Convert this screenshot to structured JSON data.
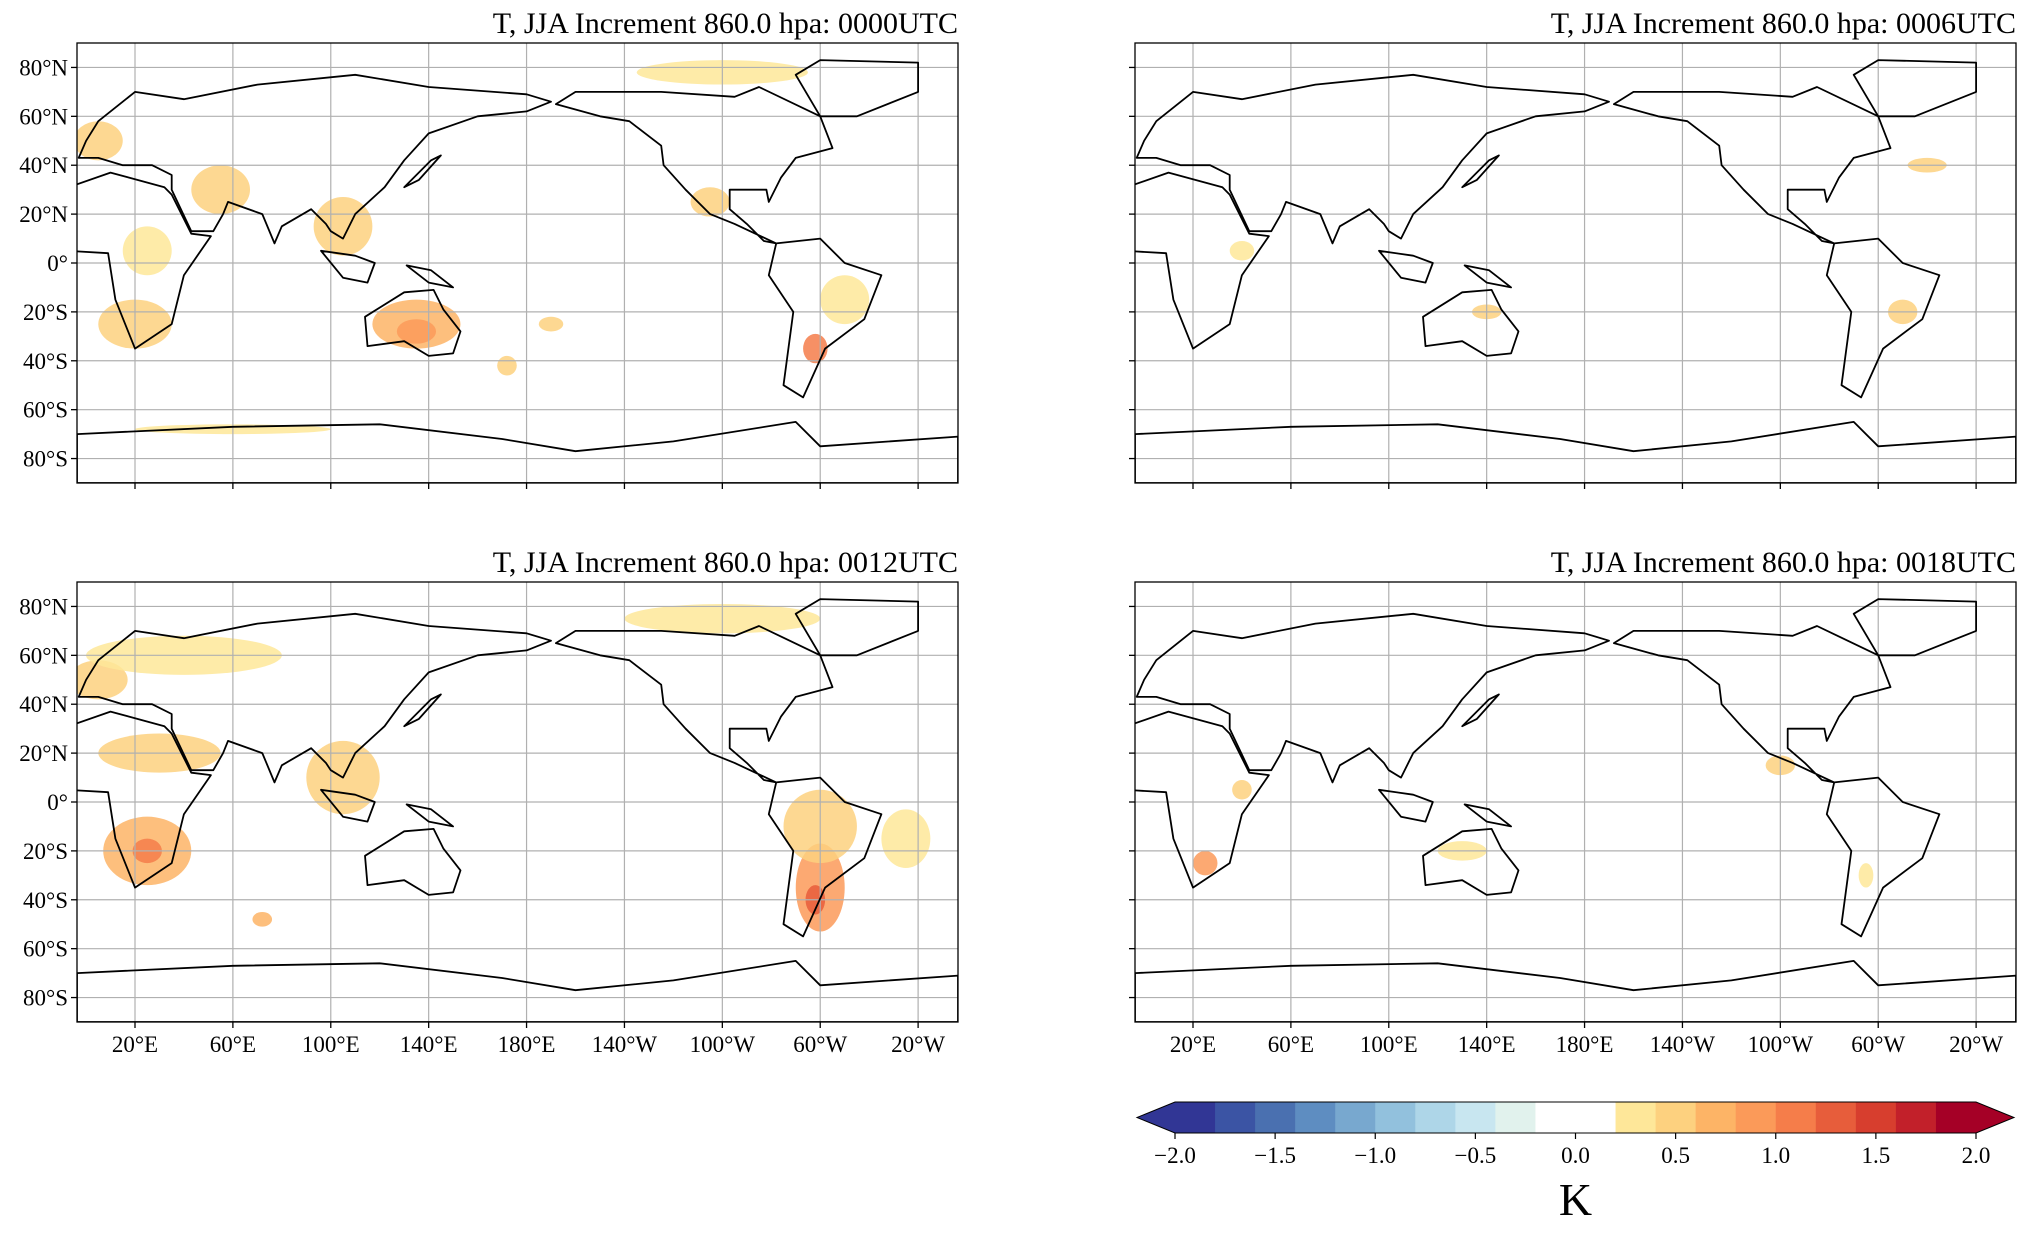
{
  "panels": [
    {
      "title": "T, JJA Increment 860.0 hpa: 0000UTC"
    },
    {
      "title": "T, JJA Increment 860.0 hpa: 0006UTC"
    },
    {
      "title": "T, JJA Increment 860.0 hpa: 0012UTC"
    },
    {
      "title": "T, JJA Increment 860.0 hpa: 0018UTC"
    }
  ],
  "lon_range": [
    -3.7,
    356.3
  ],
  "lat_range": [
    -90,
    90
  ],
  "lat_ticks": [
    {
      "value": 80,
      "label": "80°N"
    },
    {
      "value": 60,
      "label": "60°N"
    },
    {
      "value": 40,
      "label": "40°N"
    },
    {
      "value": 20,
      "label": "20°N"
    },
    {
      "value": 0,
      "label": "0°"
    },
    {
      "value": -20,
      "label": "20°S"
    },
    {
      "value": -40,
      "label": "40°S"
    },
    {
      "value": -60,
      "label": "60°S"
    },
    {
      "value": -80,
      "label": "80°S"
    }
  ],
  "lon_ticks": [
    {
      "value": 20,
      "label": "20°E"
    },
    {
      "value": 60,
      "label": "60°E"
    },
    {
      "value": 100,
      "label": "100°E"
    },
    {
      "value": 140,
      "label": "140°E"
    },
    {
      "value": 180,
      "label": "180°E"
    },
    {
      "value": -140,
      "label": "140°W"
    },
    {
      "value": -100,
      "label": "100°W"
    },
    {
      "value": -60,
      "label": "60°W"
    },
    {
      "value": -20,
      "label": "20°W"
    }
  ],
  "colorbar": {
    "label": "K",
    "levels": [
      -2,
      -1.8,
      -1.6,
      -1.4,
      -1.2,
      -1,
      -0.8,
      -0.6,
      -0.4,
      -0.2,
      0,
      0.2,
      0.4,
      0.6,
      0.8,
      1,
      1.2,
      1.4,
      1.6,
      1.8,
      2
    ],
    "colors": [
      "#313695",
      "#3b54a4",
      "#4a70b0",
      "#5e8dc1",
      "#78a8cf",
      "#92c1dd",
      "#aed6e8",
      "#c8e6f0",
      "#e1f2ed",
      "#ffffff",
      "#ffffff",
      "#fee799",
      "#fdd17f",
      "#fdb466",
      "#fb9a59",
      "#f57d4a",
      "#e75d3b",
      "#d73e2e",
      "#c2202a",
      "#a50026"
    ],
    "under_color": "#313695",
    "over_color": "#a50026",
    "ticks": [
      {
        "value": -2,
        "label": "−2.0"
      },
      {
        "value": -1.5,
        "label": "−1.5"
      },
      {
        "value": -1,
        "label": "−1.0"
      },
      {
        "value": -0.5,
        "label": "−0.5"
      },
      {
        "value": 0,
        "label": "0.0"
      },
      {
        "value": 0.5,
        "label": "0.5"
      },
      {
        "value": 1,
        "label": "1.0"
      },
      {
        "value": 1.5,
        "label": "1.5"
      },
      {
        "value": 2,
        "label": "2.0"
      }
    ]
  }
}
